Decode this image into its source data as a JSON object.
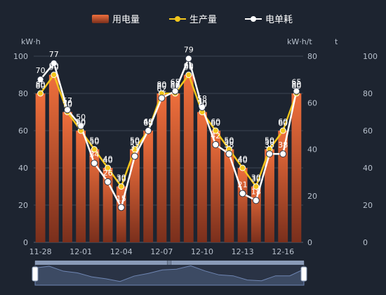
{
  "colors": {
    "background": "#1d2430",
    "bar_top": "#ef6f3c",
    "bar_bottom": "#7a2f1c",
    "production_line": "#f3c61c",
    "unit_line": "#ffffff",
    "axis_text": "#b7c0cc",
    "grid": "#3a4452",
    "slider_fill": "#3c4a63",
    "slider_line": "#6f86b3"
  },
  "legend": {
    "items": [
      {
        "label": "用电量",
        "icon": "bar-swatch-icon"
      },
      {
        "label": "生产量",
        "icon": "line-dot-icon"
      },
      {
        "label": "电单耗",
        "icon": "line-dot-icon"
      }
    ]
  },
  "axes": {
    "left_unit": "kW·h",
    "mid_unit": "kW·h/t",
    "right_unit": "t"
  },
  "chart_data": {
    "type": "bar",
    "categories": [
      "11-28",
      "11-29",
      "11-30",
      "12-01",
      "12-02",
      "12-03",
      "12-04",
      "12-05",
      "12-06",
      "12-07",
      "12-08",
      "12-09",
      "12-10",
      "12-11",
      "12-12",
      "12-13",
      "12-14",
      "12-15",
      "12-16",
      "12-17"
    ],
    "x_tick_labels": [
      "11-28",
      "12-01",
      "12-04",
      "12-07",
      "12-10",
      "12-13",
      "12-16"
    ],
    "series": [
      {
        "name": "用电量",
        "type": "bar",
        "axis": "left",
        "values": [
          80,
          90,
          70,
          60,
          50,
          40,
          30,
          50,
          60,
          80,
          80,
          90,
          70,
          60,
          50,
          40,
          30,
          50,
          60,
          80
        ]
      },
      {
        "name": "生产量",
        "type": "line",
        "axis": "right",
        "values": [
          80,
          90,
          70,
          60,
          50,
          40,
          30,
          50,
          60,
          80,
          80,
          90,
          70,
          60,
          50,
          40,
          30,
          50,
          60,
          80
        ]
      },
      {
        "name": "电单耗",
        "type": "line",
        "axis": "mid",
        "values": [
          70,
          77,
          57,
          50,
          34,
          26,
          15,
          37,
          48,
          62,
          65,
          79,
          58,
          42,
          38,
          21,
          18,
          38,
          38,
          65
        ]
      }
    ],
    "y_left": {
      "min": 0,
      "max": 100,
      "ticks": [
        0,
        20,
        40,
        60,
        80,
        100
      ],
      "label": "kW·h"
    },
    "y_mid": {
      "min": 0,
      "max": 80,
      "ticks": [
        0,
        20,
        40,
        60,
        80
      ],
      "label": "kW·h/t"
    },
    "y_right": {
      "min": 0,
      "max": 100,
      "ticks": [
        0,
        20,
        40,
        60,
        80,
        100
      ],
      "label": "t"
    },
    "grid": true,
    "legend_position": "top-center",
    "data_zoom": {
      "start": 0,
      "end": 100
    }
  }
}
